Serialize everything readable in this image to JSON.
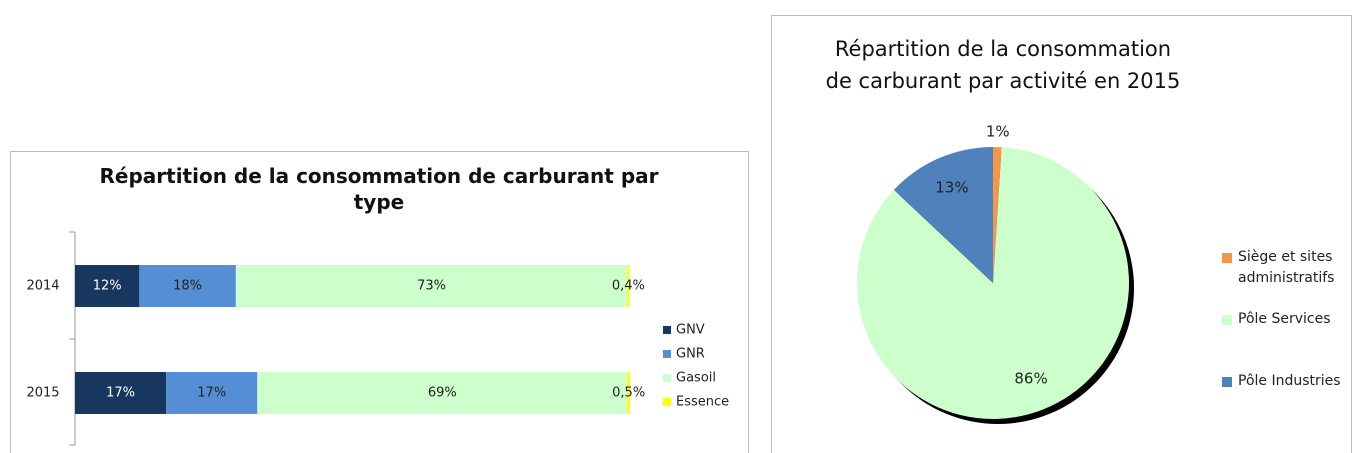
{
  "chart_data": [
    {
      "type": "stacked-bar",
      "title": "Répartition de la consommation de carburant par type",
      "categories": [
        "2014",
        "2015"
      ],
      "series": [
        {
          "name": "GNV",
          "color": "#17375e",
          "values": [
            12,
            17
          ],
          "value_labels": [
            "12%",
            "17%"
          ]
        },
        {
          "name": "GNR",
          "color": "#558ed5",
          "values": [
            18,
            17
          ],
          "value_labels": [
            "18%",
            "17%"
          ]
        },
        {
          "name": "Gasoil",
          "color": "#ccffcc",
          "values": [
            73,
            69
          ],
          "value_labels": [
            "73%",
            "69%"
          ]
        },
        {
          "name": "Essence",
          "color": "#ffff00",
          "values": [
            0.4,
            0.5
          ],
          "value_labels": [
            "0,4%",
            "0,5%"
          ]
        }
      ]
    },
    {
      "type": "pie",
      "title": "Répartition de la consommation de carburant par activité en 2015",
      "categories": [
        "Siège et sites administratifs",
        "Pôle Services",
        "Pôle Industries"
      ],
      "values": [
        1,
        86,
        13
      ],
      "value_labels": [
        "1%",
        "86%",
        "13%"
      ],
      "colors": [
        "#f79646",
        "#ccffcc",
        "#4f81bd"
      ]
    }
  ]
}
